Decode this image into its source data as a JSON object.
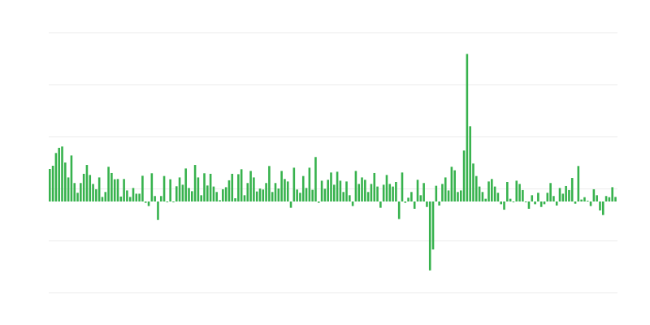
{
  "chart_data": {
    "type": "bar",
    "title": "",
    "xlabel": "",
    "ylabel": "",
    "ylim": [
      -7,
      13
    ],
    "gridlines": [
      13,
      9,
      5,
      1,
      -3,
      -7
    ],
    "grid": true,
    "legend": "none",
    "bar_color": "#37b24d",
    "grid_color": "#ebebeb",
    "values": [
      2.5,
      2.75,
      3.73,
      4.13,
      4.23,
      3.0,
      1.85,
      3.54,
      1.42,
      0.67,
      1.42,
      2.13,
      2.81,
      2.04,
      1.35,
      0.94,
      1.85,
      0.35,
      0.73,
      2.67,
      2.19,
      1.71,
      1.73,
      0.38,
      1.73,
      0.85,
      0.35,
      1.04,
      0.6,
      0.6,
      1.98,
      -0.1,
      -0.35,
      2.17,
      0.42,
      -1.42,
      0.42,
      1.96,
      -0.06,
      1.71,
      -0.06,
      1.17,
      1.85,
      1.29,
      2.54,
      1.04,
      0.79,
      2.81,
      1.85,
      0.48,
      2.17,
      1.23,
      2.13,
      1.15,
      0.73,
      0.1,
      0.94,
      1.1,
      1.63,
      2.13,
      0.25,
      2.1,
      2.48,
      0.48,
      1.42,
      2.35,
      1.85,
      0.77,
      1.0,
      0.92,
      1.42,
      2.73,
      0.73,
      1.42,
      1.0,
      2.35,
      1.73,
      1.54,
      -0.48,
      2.6,
      0.92,
      0.67,
      1.96,
      1.04,
      2.6,
      0.9,
      3.42,
      -0.1,
      1.6,
      0.98,
      1.67,
      2.23,
      1.29,
      2.29,
      1.6,
      0.73,
      1.54,
      0.48,
      -0.35,
      2.35,
      1.35,
      1.85,
      1.67,
      0.73,
      1.35,
      2.19,
      1.15,
      -0.48,
      1.29,
      2.04,
      1.35,
      1.15,
      1.5,
      -1.35,
      2.23,
      -0.1,
      0.29,
      0.73,
      -0.56,
      1.67,
      0.48,
      1.42,
      -0.42,
      -5.3,
      -3.69,
      1.21,
      -0.31,
      1.35,
      1.85,
      0.85,
      2.67,
      2.4,
      0.73,
      0.85,
      3.92,
      11.35,
      5.79,
      2.92,
      1.96,
      1.15,
      0.73,
      0.21,
      1.54,
      1.73,
      1.15,
      0.67,
      -0.21,
      -0.63,
      1.5,
      0.21,
      -0.06,
      1.6,
      1.35,
      0.88,
      -0.06,
      -0.56,
      0.48,
      -0.21,
      0.67,
      -0.42,
      -0.21,
      0.67,
      1.42,
      0.42,
      -0.31,
      1.04,
      0.6,
      1.19,
      0.88,
      1.81,
      -0.17,
      2.73,
      0.15,
      0.33,
      0.06,
      -0.35,
      0.94,
      0.48,
      -0.69,
      -1.04,
      0.42,
      0.33,
      1.1,
      0.35
    ]
  }
}
